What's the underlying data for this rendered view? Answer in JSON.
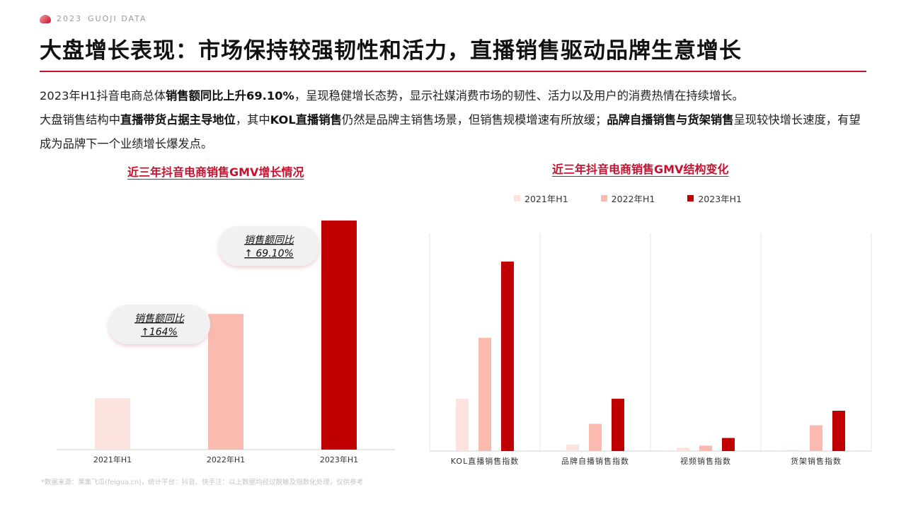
{
  "brand": {
    "year": "2023",
    "name": "GUOJI DATA"
  },
  "title": "大盘增长表现：市场保持较强韧性和活力，直播销售驱动品牌生意增长",
  "summary": {
    "p1_a": "2023年H1抖音电商总体",
    "p1_b": "销售额同比上升69.10%",
    "p1_c": "，呈现稳健增长态势，显示社媒消费市场的韧性、活力以及用户的消费热情在持续增长。",
    "p2_a": "大盘销售结构中",
    "p2_b": "直播带货占据主导地位",
    "p2_c": "，其中",
    "p2_d": "KOL直播销售",
    "p2_e": "仍然是品牌主销售场景，但销售规模增速有所放缓；",
    "p2_f": "品牌自播销售与货架销售",
    "p2_g": "呈现较快增长速度，有望成为品牌下一个业绩增长爆发点。"
  },
  "colors": {
    "y2021": "#fde3de",
    "y2022": "#fbbab0",
    "y2023": "#c00000",
    "accent": "#c8102e"
  },
  "chart_data": [
    {
      "type": "bar",
      "title": "近三年抖音电商销售GMV增长情况",
      "categories": [
        "2021年H1",
        "2022年H1",
        "2023年H1"
      ],
      "values": [
        1.0,
        2.64,
        4.46
      ],
      "ylim": [
        0,
        4.5
      ],
      "annotations": [
        {
          "label": "销售额同比",
          "value": "↑164%",
          "between": [
            "2021年H1",
            "2022年H1"
          ]
        },
        {
          "label": "销售额同比",
          "value": "↑ 69.10%",
          "between": [
            "2022年H1",
            "2023年H1"
          ]
        }
      ],
      "grid": false
    },
    {
      "type": "bar",
      "title": "近三年抖音电商销售GMV结构变化",
      "categories": [
        "KOL直播销售指数",
        "品牌自播销售指数",
        "视频销售指数",
        "货架销售指数"
      ],
      "series": [
        {
          "name": "2021年H1",
          "values": [
            24,
            3,
            1.5,
            0.5
          ]
        },
        {
          "name": "2022年H1",
          "values": [
            52,
            12.5,
            2.5,
            11.8
          ]
        },
        {
          "name": "2023年H1",
          "values": [
            87,
            24,
            6,
            18.5
          ]
        }
      ],
      "ylim": [
        0,
        100
      ],
      "legend": "top-center",
      "grid": "vertical separators"
    }
  ],
  "footnote": "*数据来源：果集飞瓜(feigua.cn)，统计平台：抖音、快手注：以上数据均经过脱敏及指数化处理，仅供参考"
}
